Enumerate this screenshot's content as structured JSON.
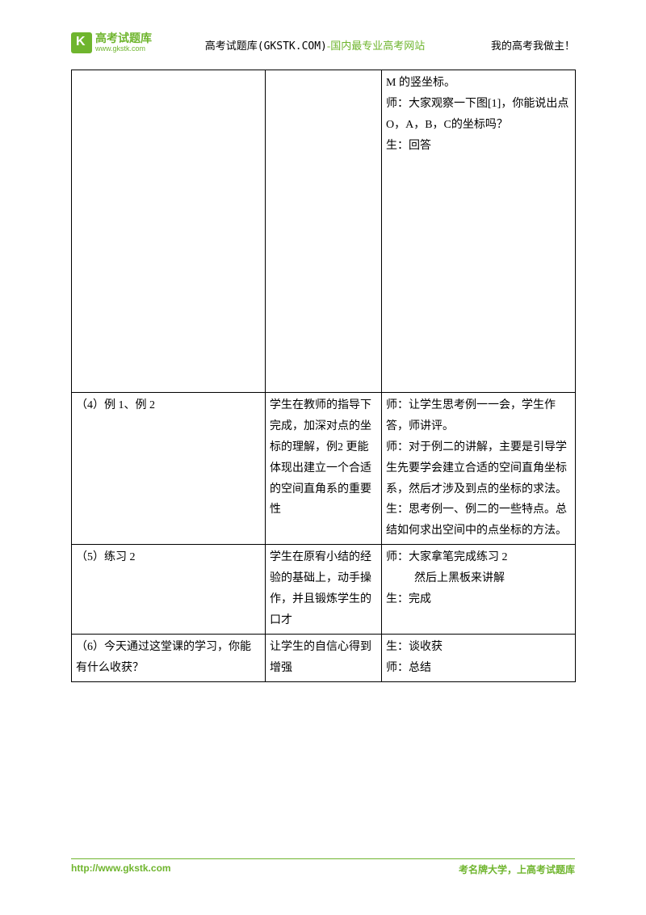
{
  "header": {
    "logo_cn": "高考试题库",
    "logo_url": "www.gkstk.com",
    "center_prefix": "高考试题库",
    "center_domain": "(GKSTK.COM)",
    "center_sep": "-",
    "center_suffix": "国内最专业高考网站",
    "right": "我的高考我做主！"
  },
  "table": {
    "rows": [
      {
        "c1": "",
        "c2": "",
        "c3": "M 的竖坐标。\n师：大家观察一下图[1]，你能说出点 O，A，B，C的坐标吗？\n生：回答"
      },
      {
        "c1": "（4）例 1、例 2",
        "c2": "学生在教师的指导下完成，加深对点的坐标的理解，例2 更能体现出建立一个合适的空间直角系的重要性",
        "c3": "师：让学生思考例一一会，学生作答，师讲评。\n师：对于例二的讲解，主要是引导学生先要学会建立合适的空间直角坐标系，然后才涉及到点的坐标的求法。\n生：思考例一、例二的一些特点。总结如何求出空间中的点坐标的方法。"
      },
      {
        "c1": "（5）练习 2",
        "c2": "学生在原宥小结的经验的基础上，动手操作，并且锻炼学生的口才",
        "c3": "师：大家拿笔完成练习 2",
        "c3_indent": "然后上黑板来讲解",
        "c3_after": "生：完成"
      },
      {
        "c1": "（6）今天通过这堂课的学习，你能有什么收获？",
        "c2": "让学生的自信心得到增强",
        "c3": "生：谈收获\n师：总结"
      }
    ]
  },
  "footer": {
    "left": "http://www.gkstk.com",
    "right": "考名牌大学，上高考试题库"
  }
}
